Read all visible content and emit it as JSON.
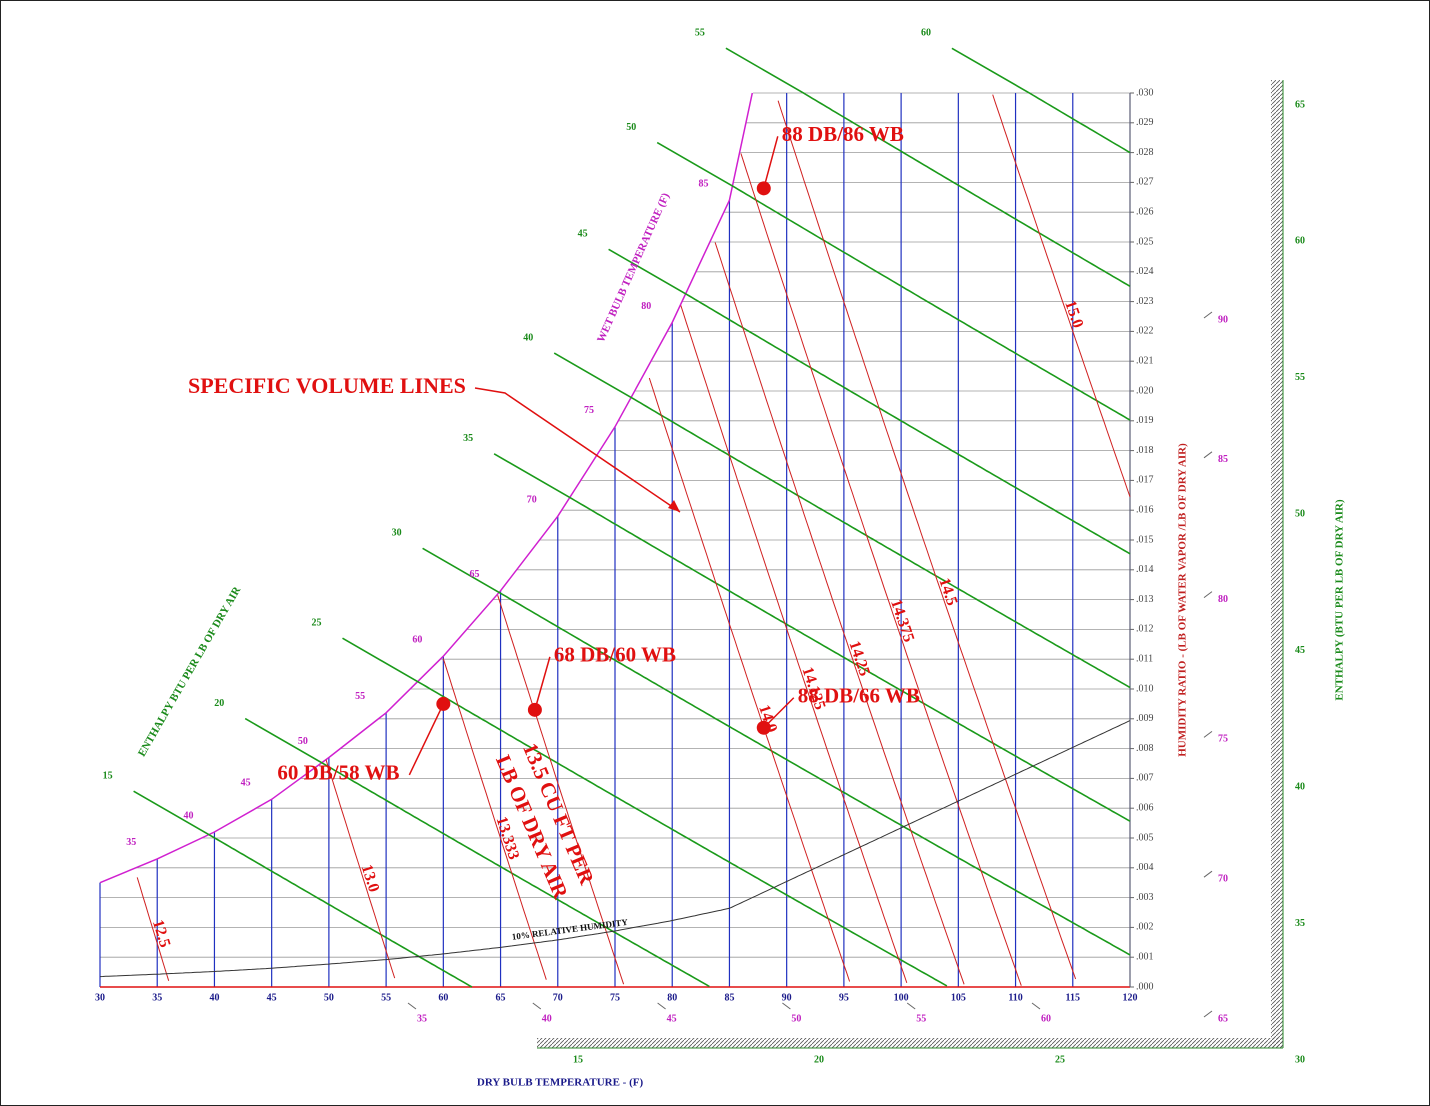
{
  "chart_data": {
    "type": "psychrometric",
    "x_label": "DRY BULB TEMPERATURE - (F)",
    "y_label": "HUMIDITY RATIO - (LB OF WATER VAPOR /LB OF DRY AIR)",
    "wet_bulb_label": "WET BULB TEMPERATURE (F)",
    "enthalpy_label_left": "ENTHALPY BTU PER LB OF DRY AIR",
    "enthalpy_label_right": "ENTHALPY (BTU PER LB OF DRY AIR)",
    "volume_title": "SPECIFIC VOLUME LINES",
    "volume_note": [
      "13.5 CU FT PER",
      "LB OF DRY AIR"
    ],
    "xlim": [
      30,
      120
    ],
    "xticks": [
      30,
      35,
      40,
      45,
      50,
      55,
      60,
      65,
      70,
      75,
      80,
      85,
      90,
      95,
      100,
      105,
      110,
      115,
      120
    ],
    "ylim": [
      0,
      0.03
    ],
    "yticks": [
      {
        "value": 0,
        "label": ".000"
      },
      {
        "value": 0.001,
        "label": ".001"
      },
      {
        "value": 0.002,
        "label": ".002"
      },
      {
        "value": 0.003,
        "label": ".003"
      },
      {
        "value": 0.004,
        "label": ".004"
      },
      {
        "value": 0.005,
        "label": ".005"
      },
      {
        "value": 0.006,
        "label": ".006"
      },
      {
        "value": 0.007,
        "label": ".007"
      },
      {
        "value": 0.008,
        "label": ".008"
      },
      {
        "value": 0.009,
        "label": ".009"
      },
      {
        "value": 0.01,
        "label": ".010"
      },
      {
        "value": 0.011,
        "label": ".011"
      },
      {
        "value": 0.012,
        "label": ".012"
      },
      {
        "value": 0.013,
        "label": ".013"
      },
      {
        "value": 0.014,
        "label": ".014"
      },
      {
        "value": 0.015,
        "label": ".015"
      },
      {
        "value": 0.016,
        "label": ".016"
      },
      {
        "value": 0.017,
        "label": ".017"
      },
      {
        "value": 0.018,
        "label": ".018"
      },
      {
        "value": 0.019,
        "label": ".019"
      },
      {
        "value": 0.02,
        "label": ".020"
      },
      {
        "value": 0.021,
        "label": ".021"
      },
      {
        "value": 0.022,
        "label": ".022"
      },
      {
        "value": 0.023,
        "label": ".023"
      },
      {
        "value": 0.024,
        "label": ".024"
      },
      {
        "value": 0.025,
        "label": ".025"
      },
      {
        "value": 0.026,
        "label": ".026"
      },
      {
        "value": 0.027,
        "label": ".027"
      },
      {
        "value": 0.028,
        "label": ".028"
      },
      {
        "value": 0.029,
        "label": ".029"
      },
      {
        "value": 0.03,
        "label": ".030"
      }
    ],
    "grid": true,
    "saturation": {
      "x": [
        30,
        35,
        40,
        45,
        50,
        55,
        60,
        65,
        70,
        75,
        80,
        85,
        87
      ],
      "values": [
        0.0035,
        0.0043,
        0.0052,
        0.0063,
        0.0077,
        0.0092,
        0.0111,
        0.0133,
        0.0158,
        0.0188,
        0.0223,
        0.0264,
        0.03
      ]
    },
    "wet_bulb_ticks": [
      35,
      40,
      45,
      50,
      55,
      60,
      65,
      70,
      75,
      80,
      85,
      90
    ],
    "enthalpy_lines": [
      15,
      20,
      25,
      30,
      35,
      40,
      45,
      50,
      55,
      60
    ],
    "enthalpy_right_ticks": [
      30,
      35,
      40,
      45,
      50,
      55,
      60,
      65
    ],
    "enthalpy_bottom_ticks": [
      15,
      20,
      25
    ],
    "right_scale_ticks": [
      65,
      70,
      75,
      80,
      85,
      90
    ],
    "bottom_scale_ticks": [
      35,
      40,
      45,
      50,
      55,
      60
    ],
    "volume_lines": {
      "values": [
        12.5,
        13.0,
        13.333,
        13.5,
        14.0,
        14.125,
        14.25,
        14.375,
        14.5,
        15.0
      ],
      "value_labels": [
        "12.5",
        "13.0",
        "13.333",
        null,
        "14.0",
        "14.125",
        "14.25",
        "14.375",
        "14.5",
        "15.0"
      ]
    },
    "rh_lines": [
      {
        "value": 10,
        "label": "10% RELATIVE HUMIDITY"
      }
    ],
    "points": [
      {
        "label": "88 DB/86 WB",
        "x": 88,
        "y": 0.0268
      },
      {
        "label": "68 DB/60 WB",
        "x": 68,
        "y": 0.0093
      },
      {
        "label": "88 DB/66 WB",
        "x": 88,
        "y": 0.0087
      },
      {
        "label": "60 DB/58 WB",
        "x": 60,
        "y": 0.0095
      }
    ]
  }
}
